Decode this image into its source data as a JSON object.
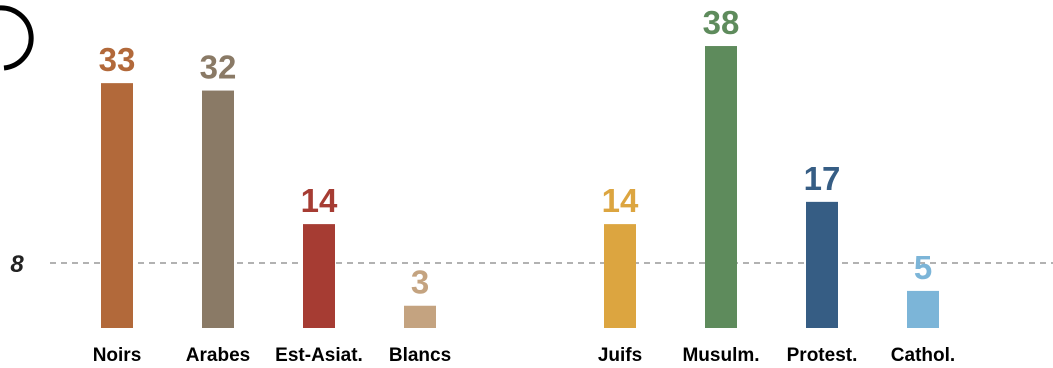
{
  "chart_data": {
    "type": "bar",
    "reference_line": {
      "value": 8,
      "label": "8",
      "style": "dashed",
      "color": "#999999"
    },
    "groups": [
      {
        "categories": [
          "Noirs",
          "Arabes",
          "Est-Asiat.",
          "Blancs"
        ],
        "values": [
          33,
          32,
          14,
          3
        ],
        "colors": [
          "#b2693a",
          "#8a7a66",
          "#a63c33",
          "#c4a380"
        ]
      },
      {
        "categories": [
          "Juifs",
          "Musulm.",
          "Protest.",
          "Cathol."
        ],
        "values": [
          14,
          38,
          17,
          5
        ],
        "colors": [
          "#dca540",
          "#5e8b5c",
          "#365d84",
          "#7cb5d8"
        ]
      }
    ],
    "value_labels": [
      "33",
      "32",
      "14",
      "3",
      "14",
      "38",
      "17",
      "5"
    ]
  }
}
